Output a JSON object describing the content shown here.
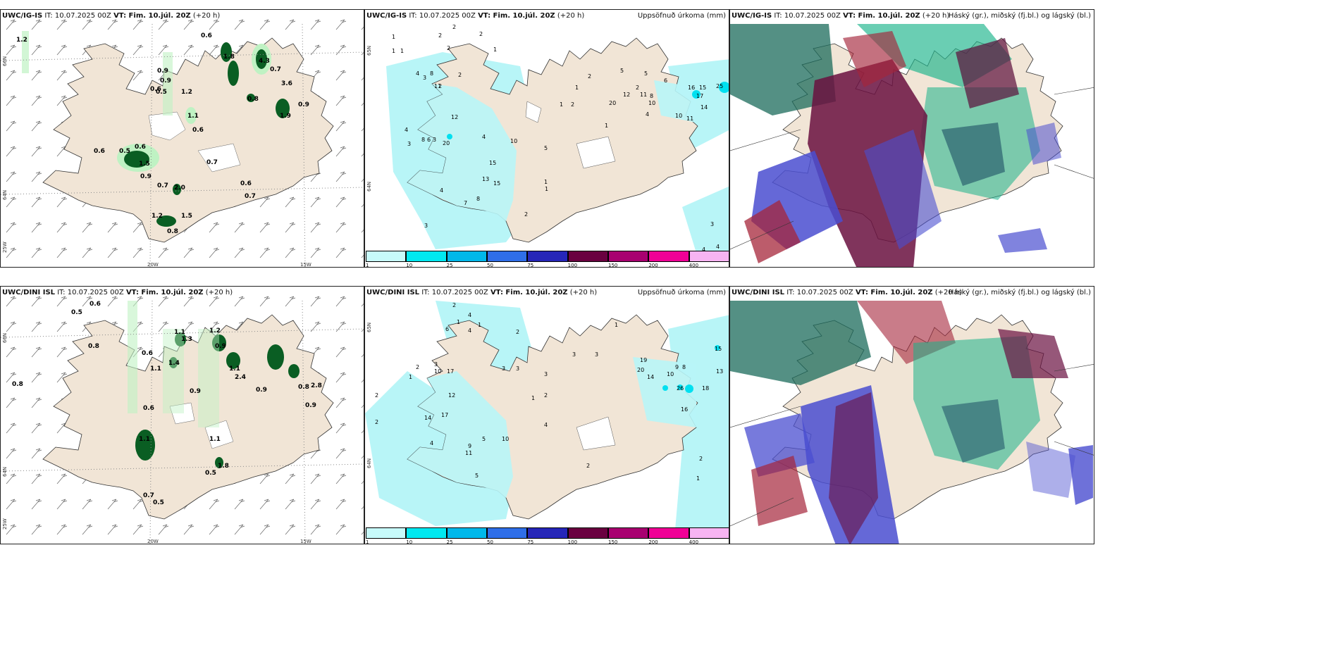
{
  "rows": [
    {
      "model": "UWC/IG-IS",
      "it_text": "IT: 10.07.2025 00Z",
      "vt_label": "VT: Fim. 10.júl. 20Z",
      "lead": "(+20 h)"
    },
    {
      "model": "UWC/DINI ISL",
      "it_text": "IT: 10.07.2025 00Z",
      "vt_label": "VT: Fim. 10.júl. 20Z",
      "lead": "(+20 h)"
    }
  ],
  "precip_title": "Uppsöfnuð úrkoma (mm)",
  "cloud_title": "Háský (gr.), miðský (fj.bl.) og lágský (bl.)",
  "axes": {
    "lat_labels": [
      "66N",
      "64N"
    ],
    "lat_labels_precip": [
      "65N",
      "64N"
    ],
    "lon_labels": [
      "25W",
      "20W",
      "15W"
    ]
  },
  "colorbar": {
    "ticks": [
      "1",
      "10",
      "25",
      "50",
      "75",
      "100",
      "150",
      "200",
      "400"
    ],
    "colors": [
      "#c7fafa",
      "#00e8f0",
      "#00b8ea",
      "#2f6ee8",
      "#2626b8",
      "#6a0040",
      "#a80070",
      "#f00096",
      "#f7b4f2"
    ]
  },
  "wind_values": {
    "ig": [
      "1.2",
      "0.6",
      "1.8",
      "1.3",
      "0.7",
      "4.3",
      "0.9",
      "0.9",
      "0.6",
      "0.5",
      "1.2",
      "3.6",
      "0.9",
      "0.8",
      "1.1",
      "1.9",
      "0.6",
      "1.5",
      "0.6",
      "0.5",
      "0.6",
      "1.5",
      "0.9",
      "0.7",
      "0.7",
      "2.0",
      "0.6",
      "0.7",
      "1.2",
      "1.5",
      "0.8"
    ],
    "dini": [
      "0.5",
      "0.6",
      "0.8",
      "1.1",
      "1.3",
      "1.2",
      "0.9",
      "0.6",
      "1.4",
      "1.1",
      "1.1",
      "2.4",
      "0.8",
      "2.8",
      "0.9",
      "0.9",
      "0.9",
      "0.6",
      "1.1",
      "1.1",
      "0.5",
      "1.8",
      "0.7",
      "0.5",
      "0.8"
    ]
  },
  "precip_values": {
    "ig": [
      "2",
      "2",
      "1",
      "1",
      "1",
      "2",
      "2",
      "1",
      "2",
      "4",
      "3",
      "8",
      "2",
      "11",
      "12",
      "8",
      "6",
      "3",
      "4",
      "3",
      "4",
      "2",
      "11",
      "2",
      "2",
      "7",
      "20",
      "10",
      "5",
      "15",
      "13",
      "15",
      "4",
      "7",
      "8",
      "3",
      "1",
      "2",
      "1",
      "2",
      "1",
      "1",
      "5",
      "2",
      "8",
      "5",
      "6",
      "4",
      "1",
      "2",
      "12",
      "11",
      "10",
      "20",
      "12",
      "2",
      "2",
      "6",
      "4",
      "2",
      "10",
      "15",
      "16",
      "17",
      "25",
      "14",
      "11",
      "3",
      "4",
      "4"
    ],
    "dini": [
      "2",
      "4",
      "1",
      "6",
      "4",
      "1",
      "2",
      "2",
      "1",
      "3",
      "10",
      "17",
      "12",
      "14",
      "17",
      "9",
      "11",
      "5",
      "5",
      "3",
      "3",
      "3",
      "2",
      "1",
      "4",
      "10",
      "3",
      "3",
      "19",
      "20",
      "14",
      "10",
      "9",
      "8",
      "26",
      "18",
      "15",
      "13",
      "16",
      "2",
      "2",
      "4",
      "1",
      "2",
      "2",
      "1"
    ]
  },
  "colors": {
    "land": "#f1e5d6",
    "precip_fill": "#b8f5f7",
    "precip_strong": "#00e0f0",
    "green_light": "#bff2c3",
    "green_dark": "#0a5e23",
    "cloud_high": "#1ab38a",
    "cloud_mid": "#6a1040",
    "cloud_low": "#4a4ed0"
  }
}
